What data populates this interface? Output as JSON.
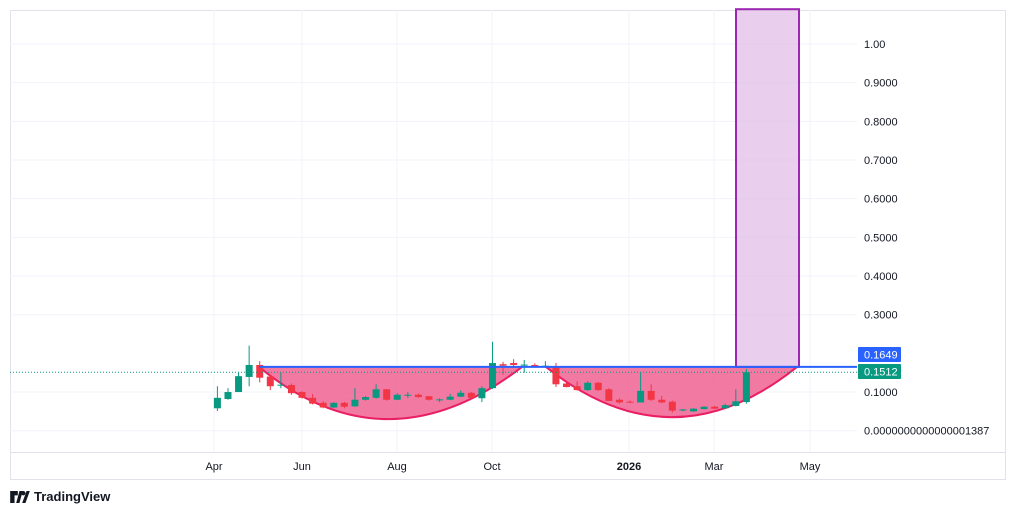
{
  "colors": {
    "up": "#089981",
    "down": "#f23645",
    "cup_fill": "#f06292",
    "cup_stroke": "#e91e63",
    "resistance": "#2962ff",
    "target_box_fill": "#e1bee7",
    "target_box_stroke": "#9c27b0",
    "last_price": "#089981"
  },
  "brand": {
    "logo_text": "TradingView"
  },
  "chart_data": {
    "type": "candlestick",
    "x_tick_labels": [
      "Apr",
      "Jun",
      "Aug",
      "Oct",
      "2026",
      "Mar",
      "May"
    ],
    "y_tick_labels": [
      "1.00",
      "0.9000",
      "0.8000",
      "0.7000",
      "0.6000",
      "0.5000",
      "0.4000",
      "0.3000",
      "0.1000",
      "0.0000000000000001387"
    ],
    "y_ticks": [
      1.0,
      0.9,
      0.8,
      0.7,
      0.6,
      0.5,
      0.4,
      0.3,
      0.1,
      0.0
    ],
    "grid": true,
    "candles_ohlc": [
      [
        0.058,
        0.115,
        0.051,
        0.085
      ],
      [
        0.082,
        0.11,
        0.08,
        0.1
      ],
      [
        0.1,
        0.15,
        0.1,
        0.141
      ],
      [
        0.139,
        0.22,
        0.115,
        0.17
      ],
      [
        0.17,
        0.18,
        0.125,
        0.137
      ],
      [
        0.14,
        0.145,
        0.105,
        0.115
      ],
      [
        0.118,
        0.15,
        0.11,
        0.119
      ],
      [
        0.118,
        0.122,
        0.093,
        0.097
      ],
      [
        0.1,
        0.102,
        0.083,
        0.085
      ],
      [
        0.085,
        0.095,
        0.068,
        0.07
      ],
      [
        0.072,
        0.076,
        0.058,
        0.06
      ],
      [
        0.06,
        0.074,
        0.059,
        0.072
      ],
      [
        0.072,
        0.075,
        0.058,
        0.062
      ],
      [
        0.063,
        0.11,
        0.062,
        0.08
      ],
      [
        0.08,
        0.09,
        0.078,
        0.087
      ],
      [
        0.085,
        0.12,
        0.083,
        0.107
      ],
      [
        0.107,
        0.108,
        0.078,
        0.08
      ],
      [
        0.08,
        0.097,
        0.079,
        0.093
      ],
      [
        0.092,
        0.1,
        0.085,
        0.093
      ],
      [
        0.093,
        0.096,
        0.085,
        0.087
      ],
      [
        0.089,
        0.09,
        0.078,
        0.08
      ],
      [
        0.08,
        0.084,
        0.074,
        0.081
      ],
      [
        0.08,
        0.095,
        0.079,
        0.088
      ],
      [
        0.088,
        0.104,
        0.087,
        0.098
      ],
      [
        0.098,
        0.1,
        0.083,
        0.085
      ],
      [
        0.084,
        0.115,
        0.074,
        0.11
      ],
      [
        0.11,
        0.23,
        0.108,
        0.175
      ],
      [
        0.172,
        0.178,
        0.145,
        0.168
      ],
      [
        0.175,
        0.185,
        0.167,
        0.17
      ],
      [
        0.17,
        0.183,
        0.15,
        0.171
      ],
      [
        0.17,
        0.174,
        0.164,
        0.165
      ],
      [
        0.168,
        0.18,
        0.163,
        0.168
      ],
      [
        0.165,
        0.175,
        0.113,
        0.12
      ],
      [
        0.122,
        0.124,
        0.112,
        0.113
      ],
      [
        0.115,
        0.128,
        0.104,
        0.105
      ],
      [
        0.105,
        0.128,
        0.103,
        0.124
      ],
      [
        0.124,
        0.126,
        0.103,
        0.105
      ],
      [
        0.107,
        0.11,
        0.077,
        0.077
      ],
      [
        0.08,
        0.083,
        0.07,
        0.073
      ],
      [
        0.075,
        0.078,
        0.072,
        0.074
      ],
      [
        0.073,
        0.15,
        0.073,
        0.103
      ],
      [
        0.103,
        0.12,
        0.077,
        0.08
      ],
      [
        0.08,
        0.09,
        0.071,
        0.073
      ],
      [
        0.075,
        0.078,
        0.047,
        0.052
      ],
      [
        0.054,
        0.056,
        0.05,
        0.055
      ],
      [
        0.05,
        0.058,
        0.049,
        0.057
      ],
      [
        0.056,
        0.063,
        0.055,
        0.062
      ],
      [
        0.062,
        0.064,
        0.056,
        0.057
      ],
      [
        0.058,
        0.07,
        0.057,
        0.066
      ],
      [
        0.064,
        0.107,
        0.063,
        0.076
      ],
      [
        0.074,
        0.16,
        0.07,
        0.151
      ]
    ],
    "resistance_level": 0.1649,
    "last_price": 0.1512,
    "resistance_label": "0.1649",
    "last_price_label": "0.1512",
    "target_box": {
      "from": 0.1649,
      "to": 1.09
    },
    "cup_bottoms": [
      0.03,
      0.035
    ]
  }
}
